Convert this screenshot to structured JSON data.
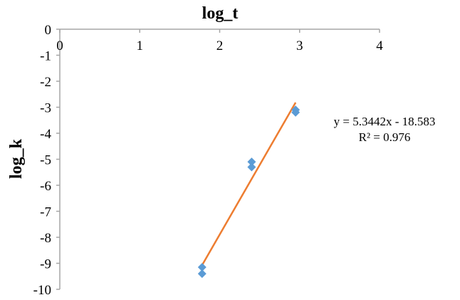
{
  "chart_data": {
    "type": "scatter",
    "title": "log_t",
    "xlabel": "log_t",
    "ylabel": "log_k",
    "xlim": [
      0,
      4
    ],
    "ylim": [
      -10,
      0
    ],
    "x_ticks": [
      "0",
      "1",
      "2",
      "3",
      "4"
    ],
    "y_ticks": [
      "0",
      "-1",
      "-2",
      "-3",
      "-4",
      "-5",
      "-6",
      "-7",
      "-8",
      "-9",
      "-10"
    ],
    "grid": false,
    "legend": "none",
    "series": [
      {
        "name": "log_k",
        "marker": "diamond",
        "color": "#5B9BD5",
        "points": [
          {
            "x": 1.78,
            "y": -9.15
          },
          {
            "x": 1.78,
            "y": -9.4
          },
          {
            "x": 2.4,
            "y": -5.1
          },
          {
            "x": 2.4,
            "y": -5.3
          },
          {
            "x": 2.95,
            "y": -3.1
          },
          {
            "x": 2.95,
            "y": -3.2
          }
        ]
      }
    ],
    "trendline": {
      "type": "linear",
      "color": "#ED7D31",
      "slope": 5.3442,
      "intercept": -18.583,
      "x_range": [
        1.78,
        2.95
      ],
      "equation": "y = 5.3442x - 18.583",
      "r_squared": "R² = 0.976"
    }
  }
}
